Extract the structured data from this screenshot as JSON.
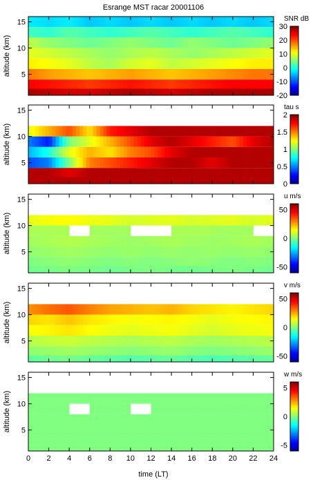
{
  "title": "Esrange MST racar 20001106",
  "xlabel": "time (LT)",
  "x_ticks": [
    "0",
    "2",
    "4",
    "6",
    "8",
    "10",
    "12",
    "14",
    "16",
    "18",
    "20",
    "22",
    "24"
  ],
  "chart_data": [
    {
      "type": "heatmap",
      "variable": "SNR",
      "colorbar_label": "SNR dB",
      "ylabel": "altitude (km)",
      "xlim": [
        0,
        24
      ],
      "ylim": [
        1,
        16
      ],
      "y_ticks": [
        "5",
        "10",
        "15"
      ],
      "clim": [
        -20,
        30
      ],
      "colorbar_ticks": [
        "30",
        "20",
        "10",
        "0",
        "-10",
        "-20"
      ],
      "colormap": [
        "#00008f",
        "#0000ff",
        "#0080ff",
        "#00ffff",
        "#80ff80",
        "#ffff00",
        "#ff8000",
        "#ff0000",
        "#800000"
      ],
      "x_hours": [
        0,
        2,
        4,
        6,
        8,
        10,
        12,
        14,
        16,
        18,
        20,
        22,
        24
      ],
      "altitude_km": [
        15,
        13,
        11,
        9,
        7,
        5,
        3,
        1.5
      ],
      "values": [
        [
          -2,
          -3,
          -2,
          -4,
          -3,
          -4,
          -3,
          -4,
          -3,
          -4,
          -3,
          -4,
          -3
        ],
        [
          2,
          1,
          3,
          2,
          1,
          2,
          3,
          2,
          1,
          2,
          3,
          2,
          1
        ],
        [
          8,
          6,
          5,
          4,
          5,
          6,
          5,
          4,
          6,
          5,
          4,
          5,
          6
        ],
        [
          10,
          9,
          8,
          7,
          6,
          7,
          8,
          7,
          6,
          7,
          8,
          9,
          10
        ],
        [
          12,
          11,
          10,
          8,
          7,
          9,
          10,
          8,
          9,
          10,
          11,
          12,
          12
        ],
        [
          18,
          16,
          15,
          14,
          15,
          16,
          15,
          14,
          15,
          16,
          17,
          18,
          18
        ],
        [
          24,
          23,
          22,
          21,
          22,
          23,
          22,
          21,
          22,
          23,
          24,
          24,
          24
        ],
        [
          28,
          27,
          26,
          26,
          27,
          28,
          27,
          26,
          27,
          28,
          28,
          28,
          28
        ]
      ]
    },
    {
      "type": "heatmap",
      "variable": "tau",
      "colorbar_label": "tau s",
      "ylabel": "altitude (km)",
      "xlim": [
        0,
        24
      ],
      "ylim": [
        1,
        16
      ],
      "y_ticks": [
        "5",
        "10",
        "15"
      ],
      "clim": [
        0,
        2
      ],
      "colorbar_ticks": [
        "2",
        "1.5",
        "1",
        "0.5",
        "0"
      ],
      "colormap": [
        "#00008f",
        "#0000ff",
        "#0080ff",
        "#00ffff",
        "#80ff80",
        "#ffff00",
        "#ff8000",
        "#ff0000",
        "#800000"
      ],
      "x_hours": [
        0,
        2,
        4,
        6,
        8,
        10,
        12,
        14,
        16,
        18,
        20,
        22,
        24
      ],
      "altitude_km": [
        15,
        13,
        11,
        9,
        7,
        5,
        3,
        1.5
      ],
      "values": [
        [
          null,
          null,
          null,
          null,
          null,
          null,
          null,
          null,
          null,
          null,
          null,
          null,
          null
        ],
        [
          null,
          null,
          null,
          null,
          null,
          null,
          null,
          null,
          null,
          null,
          null,
          null,
          null
        ],
        [
          1.2,
          1.4,
          1.6,
          1.3,
          1.7,
          1.8,
          1.9,
          1.9,
          1.9,
          1.9,
          1.9,
          1.9,
          1.9
        ],
        [
          0.5,
          0.3,
          1.0,
          1.2,
          1.4,
          1.6,
          1.8,
          1.9,
          1.8,
          1.7,
          1.6,
          1.8,
          1.9
        ],
        [
          0.6,
          0.8,
          1.2,
          1.4,
          1.3,
          1.5,
          1.6,
          1.8,
          1.9,
          1.9,
          1.9,
          1.9,
          1.9
        ],
        [
          0.4,
          0.5,
          1.0,
          1.5,
          1.6,
          1.7,
          1.8,
          1.9,
          1.9,
          1.8,
          1.9,
          1.9,
          1.9
        ],
        [
          1.9,
          1.9,
          1.8,
          1.9,
          1.9,
          1.9,
          1.9,
          1.9,
          1.9,
          1.9,
          1.9,
          1.9,
          1.9
        ],
        [
          1.9,
          1.9,
          1.9,
          1.9,
          1.9,
          1.9,
          1.9,
          1.9,
          1.9,
          1.9,
          1.9,
          1.9,
          1.9
        ]
      ]
    },
    {
      "type": "heatmap",
      "variable": "u",
      "colorbar_label": "u m/s",
      "ylabel": "altitude (km)",
      "xlim": [
        0,
        24
      ],
      "ylim": [
        1,
        16
      ],
      "y_ticks": [
        "5",
        "10",
        "15"
      ],
      "clim": [
        -60,
        60
      ],
      "colorbar_ticks": [
        "50",
        "0",
        "-50"
      ],
      "colormap": [
        "#00008f",
        "#0000ff",
        "#0080ff",
        "#00ffff",
        "#80ff80",
        "#ffff00",
        "#ff8000",
        "#ff0000",
        "#800000"
      ],
      "x_hours": [
        0,
        2,
        4,
        6,
        8,
        10,
        12,
        14,
        16,
        18,
        20,
        22,
        24
      ],
      "altitude_km": [
        15,
        13,
        11,
        9,
        7,
        5,
        3,
        1.5
      ],
      "values": [
        [
          null,
          null,
          null,
          null,
          null,
          null,
          null,
          null,
          null,
          null,
          null,
          null,
          null
        ],
        [
          null,
          null,
          null,
          null,
          null,
          null,
          null,
          null,
          null,
          null,
          null,
          null,
          null
        ],
        [
          12,
          14,
          15,
          13,
          12,
          10,
          11,
          12,
          10,
          11,
          12,
          10,
          12
        ],
        [
          null,
          5,
          null,
          null,
          4,
          null,
          null,
          null,
          5,
          null,
          4,
          null,
          null
        ],
        [
          4,
          5,
          6,
          5,
          4,
          3,
          4,
          5,
          4,
          3,
          4,
          5,
          4
        ],
        [
          2,
          3,
          4,
          3,
          2,
          3,
          2,
          3,
          2,
          3,
          2,
          3,
          2
        ],
        [
          0,
          1,
          2,
          1,
          0,
          1,
          0,
          1,
          2,
          1,
          0,
          1,
          0
        ],
        [
          -2,
          -1,
          0,
          -1,
          -2,
          -1,
          0,
          -1,
          -2,
          -1,
          0,
          -1,
          -2
        ]
      ]
    },
    {
      "type": "heatmap",
      "variable": "v",
      "colorbar_label": "v m/s",
      "ylabel": "altitude (km)",
      "xlim": [
        0,
        24
      ],
      "ylim": [
        1,
        16
      ],
      "y_ticks": [
        "5",
        "10",
        "15"
      ],
      "clim": [
        -60,
        60
      ],
      "colorbar_ticks": [
        "50",
        "0",
        "-50"
      ],
      "colormap": [
        "#00008f",
        "#0000ff",
        "#0080ff",
        "#00ffff",
        "#80ff80",
        "#ffff00",
        "#ff8000",
        "#ff0000",
        "#800000"
      ],
      "x_hours": [
        0,
        2,
        4,
        6,
        8,
        10,
        12,
        14,
        16,
        18,
        20,
        22,
        24
      ],
      "altitude_km": [
        15,
        13,
        11,
        9,
        7,
        5,
        3,
        1.5
      ],
      "values": [
        [
          null,
          null,
          null,
          null,
          null,
          null,
          null,
          null,
          null,
          null,
          null,
          null,
          null
        ],
        [
          null,
          null,
          null,
          null,
          null,
          null,
          null,
          null,
          null,
          null,
          null,
          null,
          null
        ],
        [
          28,
          32,
          35,
          30,
          26,
          24,
          22,
          24,
          20,
          18,
          16,
          18,
          20
        ],
        [
          20,
          18,
          22,
          18,
          16,
          14,
          15,
          16,
          14,
          12,
          14,
          15,
          16
        ],
        [
          14,
          16,
          18,
          15,
          13,
          12,
          13,
          14,
          12,
          10,
          12,
          13,
          14
        ],
        [
          6,
          8,
          9,
          7,
          6,
          5,
          6,
          7,
          5,
          4,
          5,
          6,
          7
        ],
        [
          2,
          3,
          4,
          3,
          2,
          1,
          2,
          3,
          1,
          0,
          1,
          2,
          3
        ],
        [
          -4,
          -2,
          -1,
          -3,
          -4,
          -5,
          -4,
          -3,
          -5,
          -6,
          -5,
          -4,
          -3
        ]
      ]
    },
    {
      "type": "heatmap",
      "variable": "w",
      "colorbar_label": "w m/s",
      "ylabel": "altitude (km)",
      "xlim": [
        0,
        24
      ],
      "ylim": [
        1,
        16
      ],
      "y_ticks": [
        "5",
        "10",
        "15"
      ],
      "clim": [
        -6,
        6
      ],
      "colorbar_ticks": [
        "5",
        "0",
        "-5"
      ],
      "colormap": [
        "#00008f",
        "#0000ff",
        "#0080ff",
        "#00ffff",
        "#80ff80",
        "#ffff00",
        "#ff8000",
        "#ff0000",
        "#800000"
      ],
      "x_hours": [
        0,
        2,
        4,
        6,
        8,
        10,
        12,
        14,
        16,
        18,
        20,
        22,
        24
      ],
      "altitude_km": [
        15,
        13,
        11,
        9,
        7,
        5,
        3,
        1.5
      ],
      "values": [
        [
          null,
          null,
          null,
          null,
          null,
          null,
          null,
          null,
          null,
          null,
          null,
          null,
          null
        ],
        [
          null,
          null,
          null,
          null,
          null,
          null,
          null,
          null,
          null,
          null,
          null,
          null,
          null
        ],
        [
          0,
          0,
          0,
          0,
          0,
          0,
          0,
          0,
          0,
          0,
          0,
          0,
          0
        ],
        [
          0,
          0,
          null,
          null,
          0,
          null,
          null,
          0,
          0,
          null,
          0,
          0,
          null
        ],
        [
          0,
          0,
          0,
          0,
          0,
          0,
          0,
          0,
          0,
          0,
          0,
          0,
          0
        ],
        [
          0,
          0,
          0,
          0,
          0,
          0,
          0,
          0,
          0,
          0,
          0,
          0,
          0
        ],
        [
          0,
          0,
          0,
          0,
          0,
          0,
          0,
          0,
          0,
          0,
          0,
          0,
          0
        ],
        [
          0,
          0,
          0,
          0,
          0,
          0,
          0,
          0,
          0,
          0,
          0,
          0,
          0
        ]
      ]
    }
  ]
}
